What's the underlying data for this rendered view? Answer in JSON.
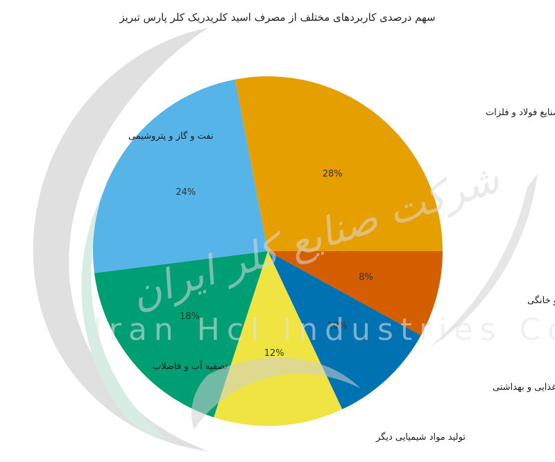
{
  "watermark": {
    "farsi_text": "شرکت صنایع کلر ایران",
    "latin_text": "Iran Hcl Industries Co"
  },
  "chart_data": {
    "type": "pie",
    "title": "سهم درصدی کاربردهای مختلف از مصرف اسید کلریدریک کلر پارس تبریز",
    "start_angle_deg": 0,
    "direction": "clockwise",
    "slices": [
      {
        "label": "مصارف خدماتی و خانگی",
        "value": 8,
        "pct_label": "8%",
        "color": "#d55e00"
      },
      {
        "label": "صنایع غذایی و بهداشتی",
        "value": 10,
        "pct_label": "10%",
        "color": "#0072b2"
      },
      {
        "label": "تولید مواد شیمیایی دیگر",
        "value": 12,
        "pct_label": "12%",
        "color": "#f0e442"
      },
      {
        "label": "تصفیه آب و فاضلاب",
        "value": 18,
        "pct_label": "18%",
        "color": "#009e73"
      },
      {
        "label": "نفت و گاز و پتروشیمی",
        "value": 24,
        "pct_label": "24%",
        "color": "#56b4e9"
      },
      {
        "label": "صنایع فولاد و فلزات",
        "value": 28,
        "pct_label": "28%",
        "color": "#e69f00"
      }
    ]
  }
}
